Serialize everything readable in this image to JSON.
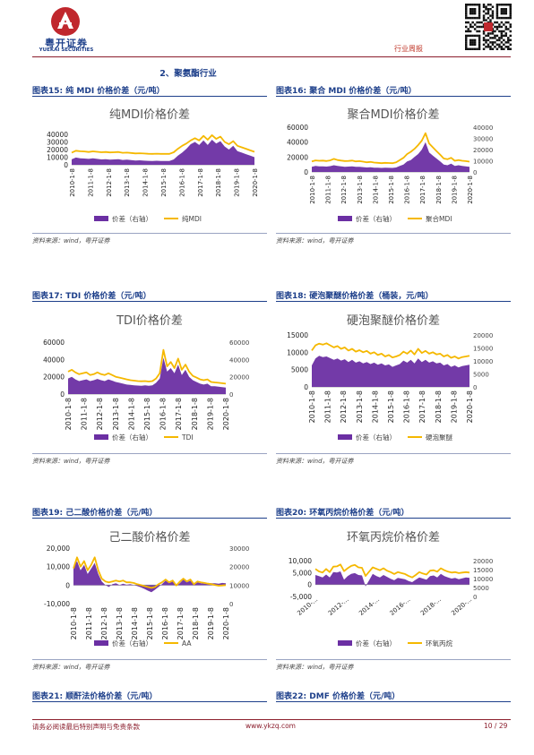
{
  "header": {
    "logo_cn": "粤开证券",
    "logo_en": "YUEKAI SECURITIES",
    "tag": "行业周报"
  },
  "section_title": "2、聚氨酯行业",
  "figures": [
    {
      "label": "图表15:",
      "heading": "纯 MDI 价格价差（元/吨）",
      "source": "资料来源：wind，粤开证券",
      "chart_data": {
        "type": "line",
        "title": "纯MDI价格价差",
        "x_ticks": [
          "2010-1-8",
          "2011-1-8",
          "2012-1-8",
          "2013-1-8",
          "2014-1-8",
          "2015-1-8",
          "2016-1-8",
          "2017-1-8",
          "2018-1-8",
          "2019-1-8",
          "2020-1-8"
        ],
        "left_ticks": [
          "40000",
          "30000",
          "20000",
          "10000",
          "0"
        ],
        "ylim": [
          0,
          40000
        ],
        "right_ticks": [],
        "legend": [
          "价差（右轴）",
          "纯MDI"
        ],
        "series": [
          {
            "name": "价差（右轴）",
            "kind": "area",
            "axis": "left",
            "color": "#6b2fa3",
            "values": [
              7200,
              9500,
              8600,
              8200,
              7800,
              8500,
              7800,
              7000,
              7400,
              6800,
              7000,
              7400,
              6400,
              6800,
              6200,
              5600,
              5900,
              5400,
              5200,
              5000,
              5300,
              5100,
              5000,
              5100,
              7000,
              12000,
              16000,
              21000,
              27000,
              30000,
              26000,
              32000,
              26000,
              33000,
              28000,
              31000,
              24000,
              20000,
              25000,
              18000,
              16000,
              14000,
              12000,
              10000
            ]
          },
          {
            "name": "纯MDI",
            "kind": "line",
            "axis": "left",
            "color": "#f5b800",
            "values": [
              16000,
              18500,
              17800,
              17500,
              16800,
              17600,
              17000,
              16500,
              16800,
              16200,
              16500,
              16800,
              15800,
              16000,
              15500,
              15000,
              15200,
              14800,
              14500,
              14300,
              14600,
              14400,
              14300,
              14400,
              16500,
              21000,
              25000,
              28000,
              32000,
              35000,
              32000,
              38000,
              33000,
              39000,
              34000,
              37000,
              30000,
              27000,
              31000,
              25000,
              23000,
              21000,
              19000,
              17000
            ]
          }
        ]
      }
    },
    {
      "label": "图表16:",
      "heading": "聚合 MDI 价格价差（元/吨）",
      "source": "资料来源：wind，粤开证券",
      "chart_data": {
        "type": "line",
        "title": "聚合MDI价格价差",
        "x_ticks": [
          "2010-1-8",
          "2011-1-8",
          "2012-1-8",
          "2013-1-8",
          "2014-1-8",
          "2015-1-8",
          "2016-1-8",
          "2017-1-8",
          "2018-1-8",
          "2019-1-8",
          "2020-1-8"
        ],
        "left_ticks": [
          "60000",
          "40000",
          "20000",
          "0"
        ],
        "ylim": [
          0,
          60000
        ],
        "right_ticks": [
          "40000",
          "30000",
          "20000",
          "10000",
          "0"
        ],
        "legend": [
          "价差（右轴）",
          "聚合MDI"
        ],
        "series": [
          {
            "name": "价差（右轴）",
            "kind": "area",
            "axis": "left",
            "color": "#6b2fa3",
            "values": [
              7000,
              8000,
              7500,
              7600,
              7200,
              7800,
              9000,
              8200,
              7600,
              7000,
              7200,
              7400,
              6800,
              7000,
              6500,
              6000,
              6200,
              5800,
              5600,
              5400,
              5600,
              5500,
              5400,
              6000,
              8000,
              10000,
              14000,
              16000,
              20000,
              24000,
              30000,
              40000,
              26000,
              22000,
              18000,
              14000,
              10000,
              9000,
              11000,
              8000,
              9000,
              8000,
              7600,
              7000
            ]
          },
          {
            "name": "聚合MDI",
            "kind": "line",
            "axis": "left",
            "color": "#f5b800",
            "values": [
              14000,
              15500,
              15000,
              15200,
              14600,
              15500,
              17500,
              16000,
              15200,
              14600,
              14800,
              15200,
              14200,
              14500,
              13800,
              13000,
              13400,
              12600,
              12200,
              11800,
              12200,
              12000,
              11800,
              12800,
              16000,
              19000,
              24000,
              27000,
              31000,
              36000,
              42000,
              52000,
              38000,
              33000,
              28000,
              23000,
              18000,
              17000,
              19000,
              15000,
              16000,
              15000,
              14500,
              13800
            ]
          }
        ]
      }
    },
    {
      "label": "图表17:",
      "heading": "TDI 价格价差（元/吨）",
      "source": "资料来源：wind，粤开证券",
      "chart_data": {
        "type": "line",
        "title": "TDI价格价差",
        "x_ticks": [
          "2010-1-8",
          "2011-1-8",
          "2012-1-8",
          "2013-1-8",
          "2014-1-8",
          "2015-1-8",
          "2016-1-8",
          "2017-1-8",
          "2018-1-8",
          "2019-1-8",
          "2020-1-8"
        ],
        "left_ticks": [
          "60000",
          "40000",
          "20000",
          "0"
        ],
        "ylim": [
          0,
          60000
        ],
        "right_ticks": [
          "60000",
          "40000",
          "20000",
          "0"
        ],
        "legend": [
          "价差（右轴）",
          "TDI"
        ],
        "series": [
          {
            "name": "价差（右轴）",
            "kind": "area",
            "axis": "left",
            "color": "#6b2fa3",
            "values": [
              18000,
              20000,
              17000,
              15000,
              16000,
              17000,
              15000,
              16000,
              17500,
              16000,
              15000,
              17000,
              15500,
              14000,
              13000,
              12000,
              11000,
              10500,
              10000,
              9800,
              9600,
              10000,
              9500,
              10000,
              13000,
              18000,
              42000,
              26000,
              30000,
              24000,
              34000,
              22000,
              28000,
              20000,
              16000,
              14000,
              12000,
              11000,
              12000,
              9000,
              9000,
              8500,
              8000,
              7500
            ]
          },
          {
            "name": "TDI",
            "kind": "line",
            "axis": "left",
            "color": "#f5b800",
            "values": [
              26000,
              28000,
              25000,
              23000,
              24000,
              25000,
              22000,
              23000,
              25000,
              23000,
              22000,
              24000,
              22000,
              20000,
              19000,
              18000,
              17000,
              16000,
              15500,
              15000,
              14800,
              15000,
              14500,
              15000,
              18000,
              24000,
              51000,
              32000,
              37000,
              30000,
              41000,
              28000,
              34000,
              26000,
              21000,
              19000,
              17000,
              16000,
              17000,
              14000,
              13500,
              13000,
              12500,
              12000
            ]
          }
        ]
      }
    },
    {
      "label": "图表18:",
      "heading": "硬泡聚醚价格价差（桶装，元/吨）",
      "source": "资料来源：wind，粤开证券",
      "chart_data": {
        "type": "line",
        "title": "硬泡聚醚价格价差",
        "x_ticks": [
          "2010-1-8",
          "2011-1-8",
          "2012-1-8",
          "2013-1-8",
          "2014-1-8",
          "2015-1-8",
          "2016-1-8",
          "2017-1-8",
          "2018-1-8",
          "2019-1-8",
          "2020-1-8"
        ],
        "left_ticks": [
          "15000",
          "10000",
          "5000",
          "0"
        ],
        "ylim": [
          0,
          15000
        ],
        "right_ticks": [
          "20000",
          "15000",
          "10000",
          "5000",
          "0"
        ],
        "legend": [
          "价差（右轴）",
          "硬泡聚醚"
        ],
        "series": [
          {
            "name": "价差（右轴）",
            "kind": "area",
            "axis": "left",
            "color": "#6b2fa3",
            "values": [
              6200,
              8200,
              9000,
              8600,
              8800,
              8300,
              7800,
              8200,
              7600,
              8000,
              7200,
              7800,
              7000,
              7400,
              6800,
              7200,
              6600,
              7000,
              6400,
              6800,
              6200,
              6500,
              5800,
              6200,
              6600,
              7600,
              7000,
              7800,
              6800,
              8200,
              7200,
              7800,
              7000,
              7400,
              6800,
              7000,
              6200,
              6600,
              5800,
              6200,
              5600,
              6000,
              6200,
              6400
            ]
          },
          {
            "name": "硬泡聚醚",
            "kind": "line",
            "axis": "left",
            "color": "#f5b800",
            "values": [
              10500,
              12000,
              12500,
              12200,
              12600,
              12000,
              11400,
              11800,
              11000,
              11400,
              10500,
              11000,
              10200,
              10600,
              10000,
              10400,
              9600,
              10000,
              9200,
              9600,
              8800,
              9200,
              8500,
              8800,
              9200,
              10200,
              9600,
              10500,
              9400,
              11000,
              9800,
              10400,
              9600,
              10000,
              9400,
              9600,
              8800,
              9200,
              8400,
              8800,
              8200,
              8600,
              8800,
              9000
            ]
          }
        ]
      }
    },
    {
      "label": "图表19:",
      "heading": "己二酸价格价差（元/吨）",
      "source": "资料来源：wind，粤开证券",
      "chart_data": {
        "type": "line",
        "title": "己二酸价格价差",
        "x_ticks": [
          "2010-1-8",
          "2011-1-8",
          "2012-1-8",
          "2013-1-8",
          "2014-1-8",
          "2015-1-8",
          "2016-1-8",
          "2017-1-8",
          "2018-1-8",
          "2019-1-8",
          "2020-1-8"
        ],
        "left_ticks": [
          "20,000",
          "10,000",
          "0",
          "-10,000"
        ],
        "ylim": [
          -10000,
          20000
        ],
        "right_ticks": [
          "30000",
          "20000",
          "10000",
          "0"
        ],
        "legend": [
          "价差（右轴）",
          "AA"
        ],
        "series": [
          {
            "name": "价差（右轴）",
            "kind": "area",
            "axis": "left",
            "color": "#6b2fa3",
            "values": [
              10000,
              13000,
              8000,
              11000,
              6000,
              9000,
              12000,
              6000,
              2000,
              0,
              -1000,
              500,
              1000,
              0,
              800,
              200,
              500,
              0,
              -500,
              -1200,
              -2000,
              -3000,
              -3800,
              -2500,
              -1000,
              500,
              2500,
              1000,
              2000,
              -500,
              1000,
              3000,
              1500,
              2500,
              0,
              1500,
              1000,
              800,
              1200,
              1000,
              1000,
              800,
              1200,
              1000
            ]
          },
          {
            "name": "AA",
            "kind": "line",
            "axis": "left",
            "color": "#f5b800",
            "values": [
              9000,
              15000,
              10000,
              13000,
              8000,
              11000,
              15000,
              8000,
              3500,
              2000,
              1500,
              2000,
              2500,
              2000,
              2500,
              1500,
              1500,
              1200,
              500,
              0,
              -500,
              -1000,
              -1500,
              -1000,
              500,
              1500,
              3000,
              1500,
              2500,
              -200,
              1800,
              3500,
              2000,
              3000,
              500,
              2000,
              1500,
              1200,
              800,
              500,
              0,
              -300,
              -200,
              0
            ]
          }
        ]
      }
    },
    {
      "label": "图表20:",
      "heading": "环氧丙烷价格价差（元/吨）",
      "source": "资料来源：wind，粤开证券",
      "chart_data": {
        "type": "line",
        "title": "环氧丙烷价格价差",
        "x_ticks": [
          "2010-...",
          "2012-...",
          "2014-...",
          "2016-...",
          "2018-...",
          "2020-..."
        ],
        "left_ticks": [
          "10,000",
          "5,000",
          "0",
          "-5,000"
        ],
        "ylim": [
          -5000,
          10000
        ],
        "right_ticks": [
          "20000",
          "15000",
          "10000",
          "5000",
          "0"
        ],
        "legend": [
          "价差（右轴）",
          "环氧丙烷"
        ],
        "series": [
          {
            "name": "价差（右轴）",
            "kind": "area",
            "axis": "left",
            "color": "#6b2fa3",
            "values": [
              4000,
              3500,
              3000,
              4200,
              3000,
              5200,
              5000,
              5500,
              2000,
              3500,
              4500,
              4800,
              4000,
              3800,
              -800,
              1800,
              4500,
              3600,
              3000,
              4000,
              3200,
              2400,
              1800,
              2800,
              2500,
              2200,
              1500,
              1000,
              2000,
              3000,
              2500,
              2000,
              3500,
              3800,
              3000,
              4500,
              3500,
              3000,
              2500,
              2800,
              2200,
              2600,
              3000,
              2800
            ]
          },
          {
            "name": "环氧丙烷",
            "kind": "line",
            "axis": "left",
            "color": "#f5b800",
            "values": [
              6500,
              5500,
              5000,
              6500,
              5200,
              7500,
              7600,
              8400,
              5600,
              6800,
              7800,
              8200,
              7200,
              7000,
              3600,
              5400,
              7200,
              6600,
              6000,
              6800,
              5800,
              5200,
              4400,
              5200,
              4800,
              4400,
              3600,
              3000,
              4000,
              5200,
              4600,
              4200,
              5800,
              6000,
              5400,
              6800,
              6000,
              5400,
              5000,
              5200,
              4800,
              5000,
              5200,
              5000
            ]
          }
        ]
      }
    },
    {
      "label": "图表21:",
      "heading": "顺酐法价格价差（元/吨）"
    },
    {
      "label": "图表22:",
      "heading": "DMF 价格价差（元/吨）"
    }
  ],
  "footer": {
    "disclaimer": "请务必阅读最后特别声明与免责条款",
    "website": "www.ykzq.com",
    "page": "10 / 29"
  }
}
